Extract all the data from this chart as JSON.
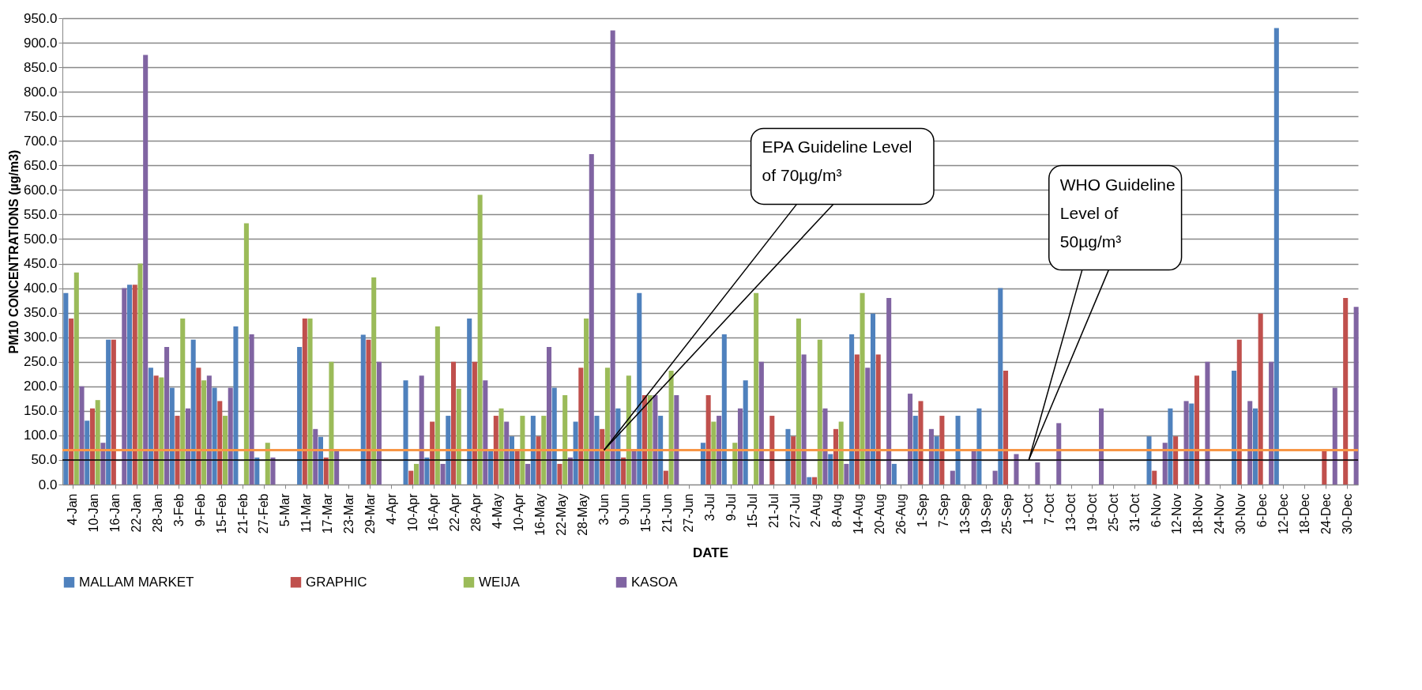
{
  "chart_data": {
    "type": "bar",
    "xlabel": "DATE",
    "ylabel": "PM10 CONCENTRATIONS (µg/m3)",
    "categories": [
      "4-Jan",
      "10-Jan",
      "16-Jan",
      "22-Jan",
      "28-Jan",
      "3-Feb",
      "9-Feb",
      "15-Feb",
      "21-Feb",
      "27-Feb",
      "5-Mar",
      "11-Mar",
      "17-Mar",
      "23-Mar",
      "29-Mar",
      "4-Apr",
      "10-Apr",
      "16-Apr",
      "22-Apr",
      "28-Apr",
      "4-May",
      "10-Apr",
      "16-May",
      "22-May",
      "28-May",
      "3-Jun",
      "9-Jun",
      "15-Jun",
      "21-Jun",
      "27-Jun",
      "3-Jul",
      "9-Jul",
      "15-Jul",
      "21-Jul",
      "27-Jul",
      "2-Aug",
      "8-Aug",
      "14-Aug",
      "20-Aug",
      "26-Aug",
      "1-Sep",
      "7-Sep",
      "13-Sep",
      "19-Sep",
      "25-Sep",
      "1-Oct",
      "7-Oct",
      "13-Oct",
      "19-Oct",
      "25-Oct",
      "31-Oct",
      "6-Nov",
      "12-Nov",
      "18-Nov",
      "24-Nov",
      "30-Nov",
      "6-Dec",
      "12-Dec",
      "18-Dec",
      "24-Dec",
      "30-Dec"
    ],
    "series": [
      {
        "name": "MALLAM MARKET",
        "color": "#4f81bd",
        "values": [
          390,
          130,
          295,
          407,
          238,
          197,
          295,
          197,
          322,
          55,
          null,
          280,
          97,
          null,
          305,
          null,
          212,
          55,
          140,
          338,
          70,
          98,
          140,
          197,
          128,
          140,
          155,
          390,
          140,
          null,
          85,
          306,
          212,
          null,
          113,
          15,
          62,
          306,
          348,
          42,
          140,
          98,
          140,
          155,
          400,
          null,
          null,
          null,
          null,
          null,
          null,
          98,
          155,
          165,
          null,
          232,
          155,
          930,
          null,
          null,
          null
        ]
      },
      {
        "name": "GRAPHIC",
        "color": "#c0504d",
        "values": [
          338,
          155,
          295,
          407,
          222,
          140,
          238,
          170,
          null,
          null,
          null,
          338,
          55,
          null,
          295,
          null,
          28,
          128,
          250,
          250,
          140,
          70,
          98,
          42,
          238,
          113,
          55,
          182,
          28,
          null,
          182,
          null,
          null,
          140,
          98,
          15,
          113,
          265,
          265,
          null,
          170,
          140,
          null,
          null,
          232,
          null,
          null,
          null,
          null,
          null,
          null,
          28,
          98,
          222,
          null,
          295,
          348,
          null,
          null,
          70,
          380
        ]
      },
      {
        "name": "WEIJA",
        "color": "#9bbb59",
        "values": [
          432,
          172,
          null,
          450,
          218,
          338,
          212,
          140,
          532,
          85,
          null,
          338,
          250,
          null,
          422,
          null,
          42,
          322,
          195,
          590,
          155,
          140,
          140,
          182,
          338,
          238,
          222,
          182,
          232,
          null,
          128,
          85,
          390,
          null,
          338,
          295,
          128,
          390,
          null,
          null,
          null,
          null,
          null,
          null,
          null,
          null,
          null,
          null,
          null,
          null,
          null,
          null,
          null,
          null,
          null,
          null,
          null,
          null,
          null,
          null,
          null
        ]
      },
      {
        "name": "KASOA",
        "color": "#8064a2",
        "values": [
          200,
          85,
          400,
          875,
          280,
          155,
          222,
          197,
          306,
          55,
          null,
          113,
          70,
          null,
          250,
          null,
          222,
          42,
          null,
          212,
          128,
          42,
          280,
          55,
          673,
          925,
          70,
          182,
          182,
          null,
          140,
          155,
          250,
          null,
          265,
          155,
          42,
          238,
          380,
          185,
          113,
          28,
          70,
          28,
          62,
          45,
          125,
          null,
          155,
          null,
          null,
          85,
          170,
          250,
          null,
          170,
          250,
          null,
          null,
          197,
          362
        ]
      }
    ],
    "ylim": [
      0,
      950
    ],
    "yticks": [
      {
        "value": 0,
        "label": "0.0"
      },
      {
        "value": 50,
        "label": "50.0"
      },
      {
        "value": 100,
        "label": "100.0"
      },
      {
        "value": 150,
        "label": "150.0"
      },
      {
        "value": 200,
        "label": "200.0"
      },
      {
        "value": 250,
        "label": "250.0"
      },
      {
        "value": 300,
        "label": "300.0"
      },
      {
        "value": 350,
        "label": "350.0"
      },
      {
        "value": 400,
        "label": "400.0"
      },
      {
        "value": 450,
        "label": "450.0"
      },
      {
        "value": 500,
        "label": "500.0"
      },
      {
        "value": 550,
        "label": "550.0"
      },
      {
        "value": 600,
        "label": "600.0"
      },
      {
        "value": 650,
        "label": "650.0"
      },
      {
        "value": 700,
        "label": "700.0"
      },
      {
        "value": 750,
        "label": "750.0"
      },
      {
        "value": 800,
        "label": "800.0"
      },
      {
        "value": 850,
        "label": "850.0"
      },
      {
        "value": 900,
        "label": "900.0"
      },
      {
        "value": 950,
        "label": "950.0"
      }
    ],
    "grid": "y",
    "legend": "bottom",
    "ref_lines": [
      {
        "axis": "y",
        "value": 70,
        "label": "EPA Guideline Level of 70µg/m³",
        "color": "#f79646"
      },
      {
        "axis": "y",
        "value": 50,
        "label": "WHO Guideline Level of 50µg/m³",
        "color": "#000000"
      }
    ]
  }
}
